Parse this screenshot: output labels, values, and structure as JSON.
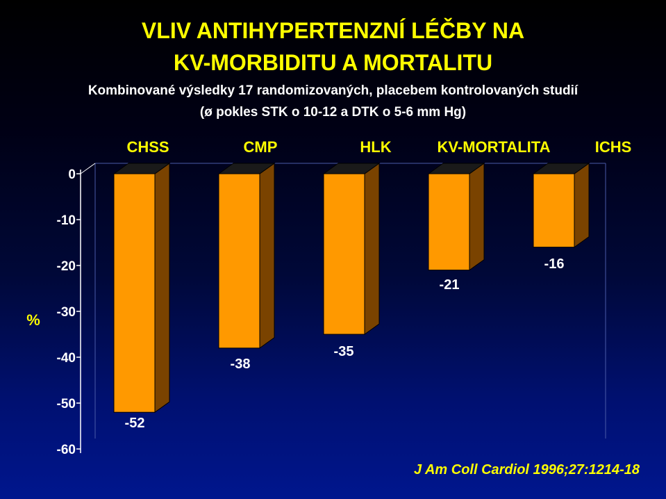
{
  "header": {
    "title_line1": "VLIV ANTIHYPERTENZNÍ LÉČBY NA",
    "title_line2": "KV-MORBIDITU A MORTALITU",
    "subtitle_line1": "Kombinované výsledky 17 randomizovaných, placebem kontrolovaných studií",
    "subtitle_line2": "(ø pokles STK o 10-12 a DTK o 5-6 mm Hg)"
  },
  "citation": "J Am Coll Cardiol 1996;27:1214-18",
  "colors": {
    "bar_front": "#ff9900",
    "bar_side": "#7a4300",
    "bar_top": "#1a1a1a",
    "title": "#ffff00",
    "text": "#ffffff"
  },
  "chart_data": {
    "type": "bar",
    "title": "VLIV ANTIHYPERTENZNÍ LÉČBY NA KV-MORBIDITU A MORTALITU",
    "ylabel": "%",
    "xlabel": "",
    "categories": [
      "CHSS",
      "CMP",
      "HLK",
      "KV-MORTALITA",
      "ICHS"
    ],
    "values": [
      -52,
      -38,
      -35,
      -21,
      -16
    ],
    "data_labels": [
      "-52",
      "-38",
      "-35",
      "-21",
      "-16"
    ],
    "yticks": [
      "0",
      "-10",
      "-20",
      "-30",
      "-40",
      "-50",
      "-60"
    ],
    "ytick_values": [
      0,
      -10,
      -20,
      -30,
      -40,
      -50,
      -60
    ],
    "ylim": [
      -60,
      0
    ],
    "legend": "none",
    "grid": false,
    "style": "3d"
  }
}
